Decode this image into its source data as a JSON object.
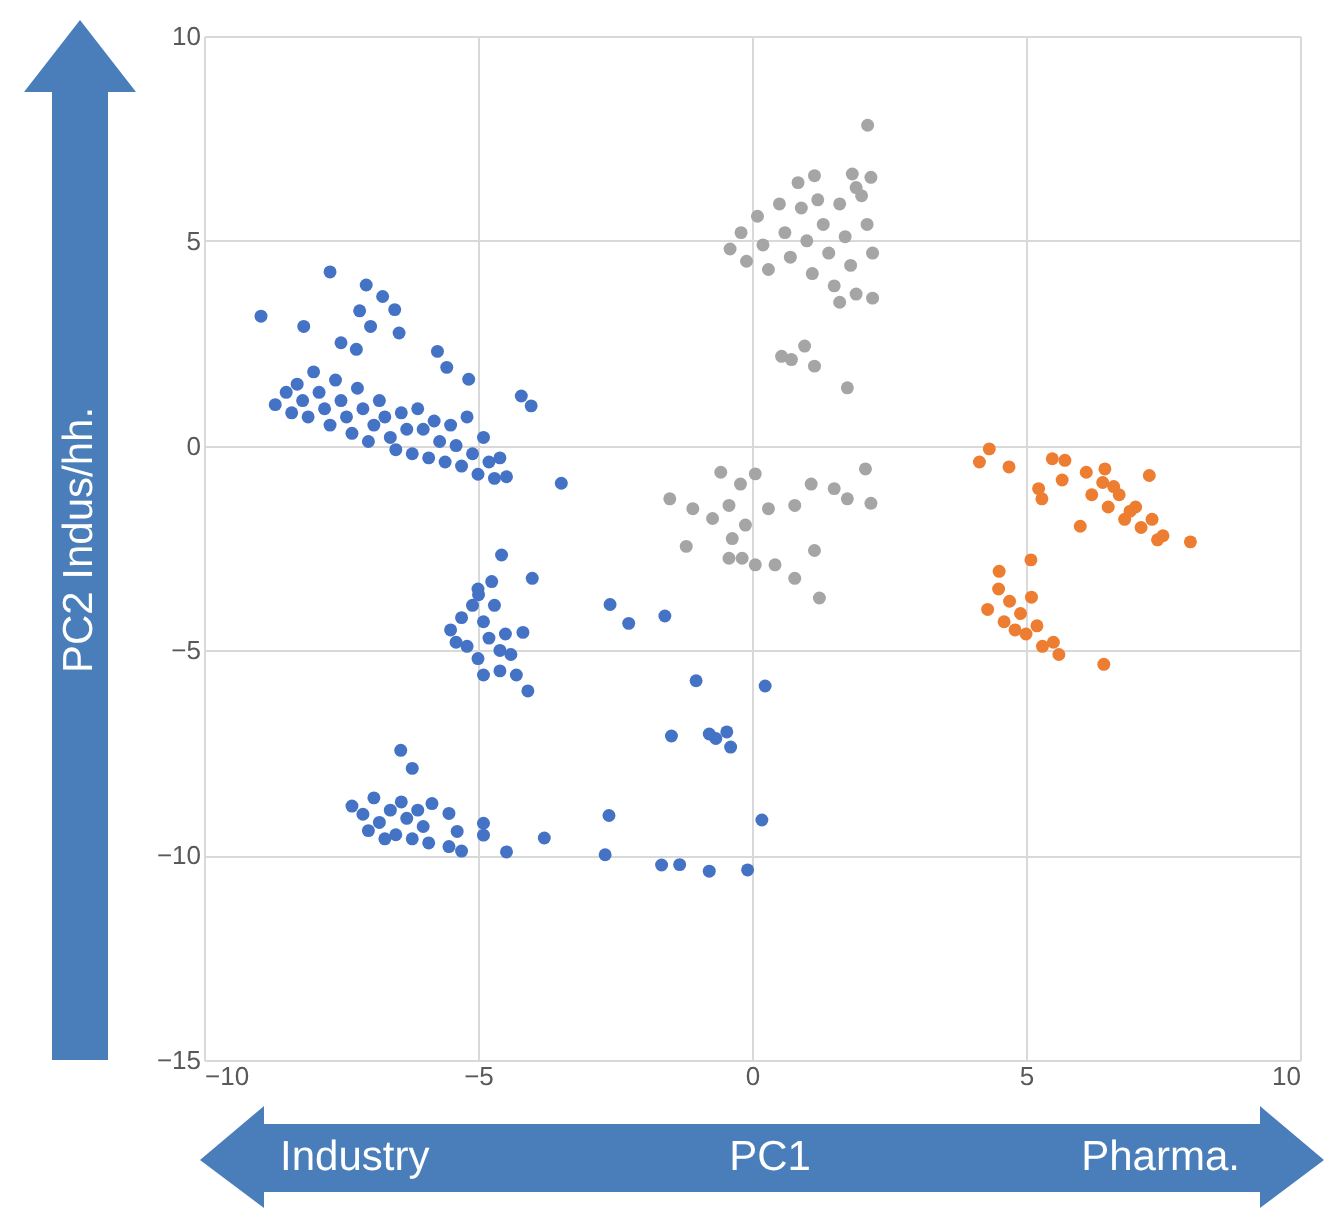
{
  "chart_data": {
    "type": "scatter",
    "xlabel": "PC1",
    "ylabel": "PC2 Indus/hh.",
    "annotations": [
      "Industry",
      "Pharma."
    ],
    "xlim": [
      -10,
      10
    ],
    "xticks": [
      -10,
      -5,
      0,
      5,
      10
    ],
    "ylim": [
      -15,
      10
    ],
    "yticks": [
      -15,
      -10,
      -5,
      0,
      5,
      10
    ],
    "grid": true,
    "marker": "circle",
    "series": [
      {
        "color": "#4472c4",
        "x": [
          -8.96,
          -7.7,
          -8.18,
          -7.04,
          -6.74,
          -7.16,
          -6.52,
          -6.96,
          -6.44,
          -7.5,
          -7.22,
          -5.74,
          -5.57,
          -5.17,
          -4.21,
          -4.03,
          -4.48,
          -3.48,
          -8.7,
          -8.5,
          -8.4,
          -8.3,
          -8.2,
          -8.1,
          -8.0,
          -7.9,
          -7.8,
          -7.7,
          -7.6,
          -7.5,
          -7.4,
          -7.3,
          -7.2,
          -7.1,
          -7.0,
          -6.9,
          -6.8,
          -6.7,
          -6.6,
          -6.5,
          -6.4,
          -6.3,
          -6.2,
          -6.1,
          -6.0,
          -5.9,
          -5.8,
          -5.7,
          -5.6,
          -5.5,
          -5.4,
          -5.3,
          -5.2,
          -5.1,
          -5.0,
          -4.9,
          -4.8,
          -4.7,
          -4.6,
          -4.57,
          -4.01,
          -4.75,
          -4.99,
          -4.18,
          -4.09,
          -5.5,
          -5.3,
          -5.1,
          -4.9,
          -5.2,
          -5.0,
          -4.8,
          -4.6,
          -4.4,
          -4.6,
          -4.9,
          -4.3,
          -5.4,
          -4.7,
          -5.0,
          -4.5,
          -6.41,
          -6.2,
          -5.84,
          -5.53,
          -5.38,
          -5.53,
          -5.3,
          -4.9,
          -4.9,
          -4.48,
          -3.79,
          -7.3,
          -7.1,
          -6.9,
          -6.8,
          -6.6,
          -6.5,
          -6.4,
          -6.3,
          -6.2,
          -6.0,
          -6.1,
          -6.7,
          -7.0,
          -5.9,
          -2.59,
          -2.25,
          -1.59,
          -1.02,
          0.24,
          -1.47,
          -0.78,
          -0.46,
          -0.66,
          -0.39,
          -2.61,
          0.18,
          -2.68,
          -1.65,
          -1.32,
          -0.78,
          -0.08
        ],
        "values": [
          3.16,
          4.24,
          2.91,
          3.92,
          3.64,
          3.29,
          3.32,
          2.91,
          2.75,
          2.51,
          2.35,
          2.3,
          1.91,
          1.62,
          1.21,
          0.97,
          -0.76,
          -0.92,
          1.0,
          1.3,
          0.8,
          1.5,
          1.1,
          0.7,
          1.8,
          1.3,
          0.9,
          0.5,
          1.6,
          1.1,
          0.7,
          0.3,
          1.4,
          0.9,
          0.1,
          0.5,
          1.1,
          0.7,
          0.2,
          -0.1,
          0.8,
          0.4,
          -0.2,
          0.9,
          0.4,
          -0.3,
          0.6,
          0.1,
          -0.4,
          0.5,
          0.0,
          -0.5,
          0.7,
          -0.2,
          -0.7,
          0.2,
          -0.4,
          -0.8,
          -0.3,
          -2.67,
          -3.24,
          -3.32,
          -3.64,
          -4.56,
          -5.99,
          -4.5,
          -4.2,
          -3.9,
          -4.3,
          -4.9,
          -5.2,
          -4.7,
          -5.0,
          -5.1,
          -5.5,
          -5.6,
          -5.6,
          -4.8,
          -3.9,
          -3.5,
          -4.6,
          -7.44,
          -7.88,
          -8.74,
          -8.98,
          -9.42,
          -9.79,
          -9.9,
          -9.22,
          -9.51,
          -9.92,
          -9.58,
          -8.8,
          -9.0,
          -8.6,
          -9.2,
          -8.9,
          -9.5,
          -8.7,
          -9.1,
          -9.6,
          -9.3,
          -8.9,
          -9.6,
          -9.4,
          -9.7,
          -3.88,
          -4.34,
          -4.16,
          -5.74,
          -5.87,
          -7.09,
          -7.04,
          -6.99,
          -7.15,
          -7.36,
          -9.03,
          -9.14,
          -9.99,
          -10.24,
          -10.23,
          -10.39,
          -10.36
        ]
      },
      {
        "color": "#a5a5a5",
        "x": [
          2.11,
          0.84,
          1.14,
          1.83,
          2.17,
          -0.4,
          -0.2,
          -0.1,
          0.1,
          0.2,
          0.3,
          0.5,
          0.6,
          0.7,
          0.9,
          1.0,
          1.1,
          1.2,
          1.3,
          1.4,
          1.5,
          1.6,
          1.7,
          1.8,
          1.9,
          2.0,
          2.1,
          2.2,
          2.2,
          1.9,
          1.6,
          0.54,
          0.96,
          1.14,
          0.72,
          1.74,
          -0.57,
          0.06,
          -0.21,
          2.07,
          -1.2,
          1.14,
          1.23,
          0.78,
          2.17,
          1.08,
          1.5,
          1.74,
          -1.08,
          -0.72,
          -0.42,
          0.3,
          0.78,
          -0.36,
          -0.18,
          0.06,
          0.42,
          -0.42,
          -0.12,
          -1.5
        ],
        "values": [
          7.82,
          6.42,
          6.59,
          6.63,
          6.55,
          4.8,
          5.2,
          4.5,
          5.6,
          4.9,
          4.3,
          5.9,
          5.2,
          4.6,
          5.8,
          5.0,
          4.2,
          6.0,
          5.4,
          4.7,
          3.9,
          5.9,
          5.1,
          4.4,
          3.7,
          6.1,
          5.4,
          4.7,
          3.6,
          6.3,
          3.5,
          2.18,
          2.43,
          1.94,
          2.1,
          1.41,
          -0.65,
          -0.69,
          -0.94,
          -0.57,
          -2.46,
          -2.56,
          -3.72,
          -3.24,
          -1.41,
          -0.94,
          -1.05,
          -1.3,
          -1.54,
          -1.78,
          -1.46,
          -1.54,
          -1.46,
          -2.27,
          -2.75,
          -2.91,
          -2.91,
          -2.75,
          -1.94,
          -1.3
        ]
      },
      {
        "color": "#ed7d31",
        "x": [
          4.15,
          4.33,
          4.69,
          5.23,
          5.29,
          5.48,
          5.71,
          5.66,
          6.1,
          5.99,
          7.25,
          8.0,
          6.44,
          6.2,
          6.4,
          6.5,
          6.7,
          6.8,
          7.0,
          7.1,
          7.3,
          7.5,
          6.6,
          6.9,
          7.4,
          4.51,
          5.09,
          6.42,
          4.3,
          4.5,
          4.7,
          4.6,
          4.9,
          5.0,
          5.2,
          5.3,
          5.5,
          5.6,
          5.1,
          4.8
        ],
        "values": [
          -0.4,
          -0.08,
          -0.52,
          -1.05,
          -1.3,
          -0.32,
          -0.36,
          -0.84,
          -0.65,
          -1.97,
          -0.73,
          -2.35,
          -0.57,
          -1.2,
          -0.9,
          -1.5,
          -1.2,
          -1.8,
          -1.5,
          -2.0,
          -1.8,
          -2.2,
          -1.0,
          -1.6,
          -2.3,
          -3.07,
          -2.79,
          -5.34,
          -4.0,
          -3.5,
          -3.8,
          -4.3,
          -4.1,
          -4.6,
          -4.4,
          -4.9,
          -4.8,
          -5.1,
          -3.7,
          -4.5
        ]
      }
    ]
  }
}
